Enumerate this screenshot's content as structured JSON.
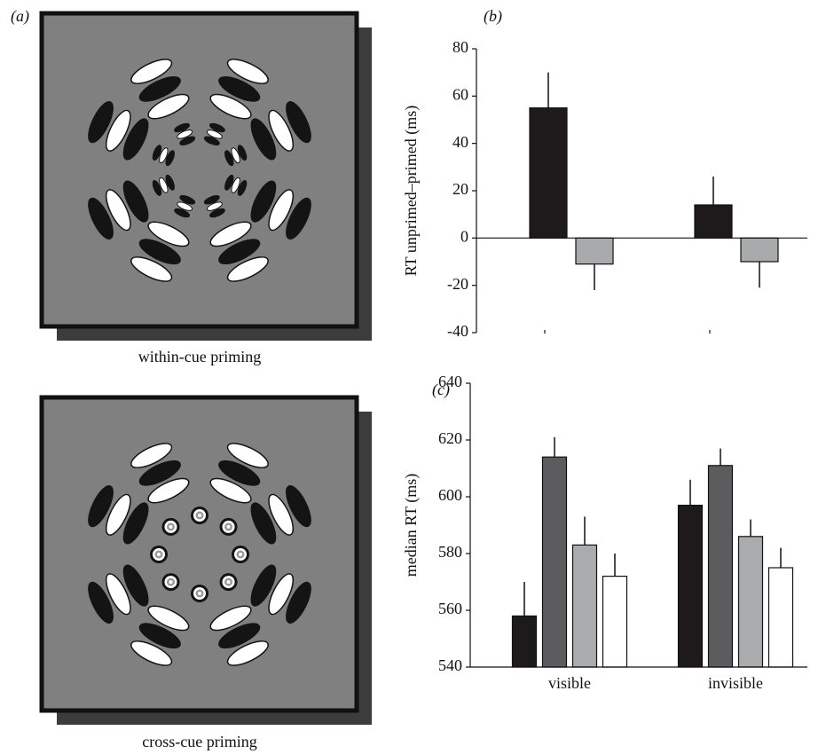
{
  "stimuli": {
    "panel_label": "(a)",
    "captions": [
      "within-cue priming",
      "cross-cue priming"
    ]
  },
  "chart_data": [
    {
      "type": "bar",
      "panel_label": "(b)",
      "y_label": "RT unprimed–primed (ms)",
      "categories": [
        null,
        null
      ],
      "series": [
        {
          "color": "#1e1a1b",
          "values": [
            55,
            14
          ],
          "errors": [
            15,
            12
          ]
        },
        {
          "color": "#a9aaac",
          "values": [
            -11,
            -10
          ],
          "errors": [
            11,
            11
          ]
        }
      ],
      "ylim": [
        -40,
        80
      ],
      "yticks": [
        80,
        60,
        40,
        20,
        0,
        -20,
        -40
      ],
      "grid": false
    },
    {
      "type": "bar",
      "panel_label": "(c)",
      "y_label": "median RT (ms)",
      "categories": [
        "visible",
        "invisible"
      ],
      "series": [
        {
          "color": "#1e1a1b",
          "values": [
            558,
            597
          ],
          "errors": [
            12,
            9
          ]
        },
        {
          "color": "#5c5c5e",
          "values": [
            614,
            611
          ],
          "errors": [
            7,
            6
          ]
        },
        {
          "color": "#aaabad",
          "values": [
            583,
            586
          ],
          "errors": [
            10,
            6
          ]
        },
        {
          "color": "#ffffff",
          "values": [
            572,
            575
          ],
          "errors": [
            8,
            7
          ]
        }
      ],
      "ylim": [
        540,
        640
      ],
      "yticks": [
        640,
        620,
        600,
        580,
        560,
        540
      ],
      "grid": false
    }
  ]
}
